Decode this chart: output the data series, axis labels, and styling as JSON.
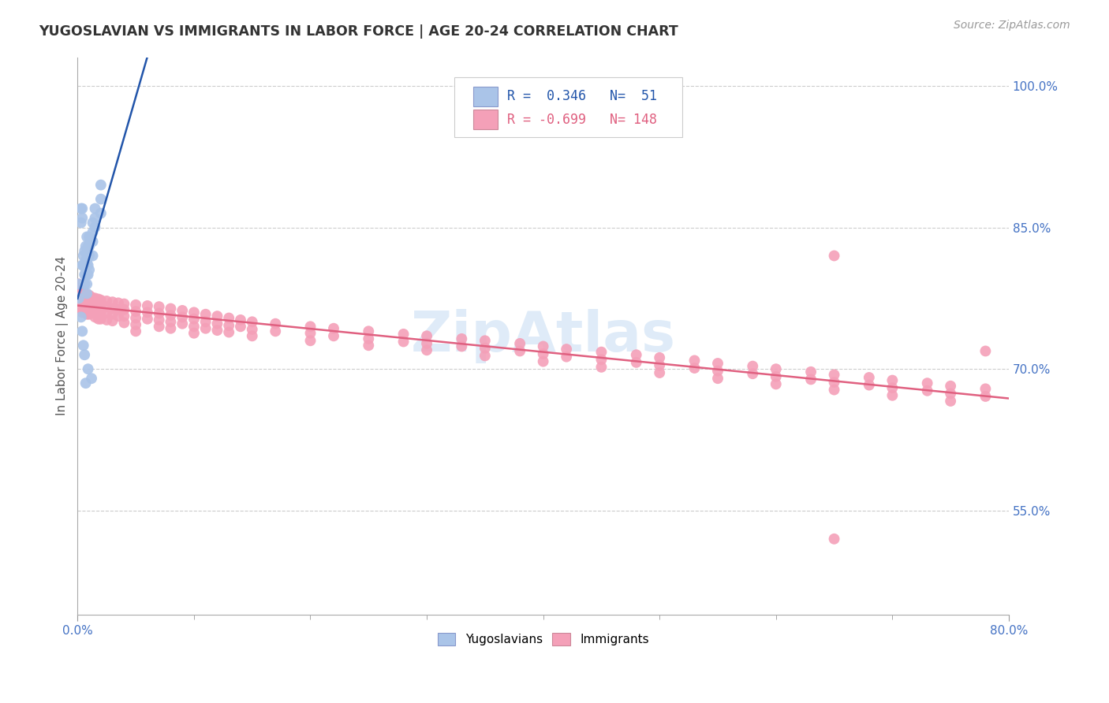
{
  "title": "YUGOSLAVIAN VS IMMIGRANTS IN LABOR FORCE | AGE 20-24 CORRELATION CHART",
  "source": "Source: ZipAtlas.com",
  "ylabel": "In Labor Force | Age 20-24",
  "ytick_labels": [
    "100.0%",
    "85.0%",
    "70.0%",
    "55.0%"
  ],
  "ytick_values": [
    1.0,
    0.85,
    0.7,
    0.55
  ],
  "xlim": [
    0.0,
    0.8
  ],
  "ylim": [
    0.44,
    1.03
  ],
  "blue_scatter_color": "#aac4e8",
  "pink_scatter_color": "#f4a0b8",
  "blue_line_color": "#2255aa",
  "pink_line_color": "#e06080",
  "watermark": "ZipAtlas",
  "background_color": "#ffffff",
  "grid_color": "#cccccc",
  "title_color": "#333333",
  "blue_scatter": [
    [
      0.001,
      0.775
    ],
    [
      0.001,
      0.79
    ],
    [
      0.003,
      0.87
    ],
    [
      0.003,
      0.855
    ],
    [
      0.004,
      0.87
    ],
    [
      0.004,
      0.86
    ],
    [
      0.004,
      0.81
    ],
    [
      0.005,
      0.82
    ],
    [
      0.005,
      0.81
    ],
    [
      0.006,
      0.825
    ],
    [
      0.006,
      0.81
    ],
    [
      0.006,
      0.8
    ],
    [
      0.006,
      0.79
    ],
    [
      0.007,
      0.83
    ],
    [
      0.007,
      0.815
    ],
    [
      0.007,
      0.805
    ],
    [
      0.007,
      0.8
    ],
    [
      0.007,
      0.8
    ],
    [
      0.008,
      0.84
    ],
    [
      0.008,
      0.82
    ],
    [
      0.008,
      0.815
    ],
    [
      0.008,
      0.81
    ],
    [
      0.008,
      0.8
    ],
    [
      0.008,
      0.79
    ],
    [
      0.008,
      0.78
    ],
    [
      0.009,
      0.83
    ],
    [
      0.009,
      0.82
    ],
    [
      0.009,
      0.81
    ],
    [
      0.009,
      0.8
    ],
    [
      0.01,
      0.84
    ],
    [
      0.01,
      0.83
    ],
    [
      0.01,
      0.82
    ],
    [
      0.01,
      0.805
    ],
    [
      0.011,
      0.835
    ],
    [
      0.013,
      0.855
    ],
    [
      0.013,
      0.845
    ],
    [
      0.013,
      0.835
    ],
    [
      0.013,
      0.82
    ],
    [
      0.015,
      0.87
    ],
    [
      0.015,
      0.86
    ],
    [
      0.015,
      0.85
    ],
    [
      0.02,
      0.895
    ],
    [
      0.02,
      0.88
    ],
    [
      0.02,
      0.865
    ],
    [
      0.003,
      0.755
    ],
    [
      0.004,
      0.74
    ],
    [
      0.005,
      0.725
    ],
    [
      0.006,
      0.715
    ],
    [
      0.007,
      0.685
    ],
    [
      0.009,
      0.7
    ],
    [
      0.012,
      0.69
    ]
  ],
  "pink_scatter": [
    [
      0.001,
      0.78
    ],
    [
      0.001,
      0.79
    ],
    [
      0.001,
      0.77
    ],
    [
      0.002,
      0.785
    ],
    [
      0.002,
      0.775
    ],
    [
      0.002,
      0.77
    ],
    [
      0.003,
      0.785
    ],
    [
      0.003,
      0.778
    ],
    [
      0.003,
      0.77
    ],
    [
      0.003,
      0.765
    ],
    [
      0.004,
      0.78
    ],
    [
      0.004,
      0.775
    ],
    [
      0.004,
      0.77
    ],
    [
      0.004,
      0.76
    ],
    [
      0.005,
      0.782
    ],
    [
      0.005,
      0.775
    ],
    [
      0.005,
      0.768
    ],
    [
      0.005,
      0.762
    ],
    [
      0.006,
      0.78
    ],
    [
      0.006,
      0.774
    ],
    [
      0.006,
      0.768
    ],
    [
      0.007,
      0.778
    ],
    [
      0.007,
      0.772
    ],
    [
      0.007,
      0.766
    ],
    [
      0.007,
      0.76
    ],
    [
      0.008,
      0.778
    ],
    [
      0.008,
      0.772
    ],
    [
      0.008,
      0.765
    ],
    [
      0.008,
      0.758
    ],
    [
      0.009,
      0.778
    ],
    [
      0.009,
      0.772
    ],
    [
      0.009,
      0.765
    ],
    [
      0.01,
      0.778
    ],
    [
      0.01,
      0.772
    ],
    [
      0.01,
      0.765
    ],
    [
      0.01,
      0.758
    ],
    [
      0.012,
      0.776
    ],
    [
      0.012,
      0.77
    ],
    [
      0.012,
      0.763
    ],
    [
      0.015,
      0.775
    ],
    [
      0.015,
      0.769
    ],
    [
      0.015,
      0.762
    ],
    [
      0.015,
      0.755
    ],
    [
      0.018,
      0.774
    ],
    [
      0.018,
      0.768
    ],
    [
      0.018,
      0.76
    ],
    [
      0.018,
      0.753
    ],
    [
      0.02,
      0.773
    ],
    [
      0.02,
      0.767
    ],
    [
      0.02,
      0.76
    ],
    [
      0.02,
      0.753
    ],
    [
      0.025,
      0.772
    ],
    [
      0.025,
      0.766
    ],
    [
      0.025,
      0.759
    ],
    [
      0.025,
      0.752
    ],
    [
      0.03,
      0.771
    ],
    [
      0.03,
      0.764
    ],
    [
      0.03,
      0.758
    ],
    [
      0.03,
      0.751
    ],
    [
      0.035,
      0.77
    ],
    [
      0.035,
      0.763
    ],
    [
      0.035,
      0.756
    ],
    [
      0.04,
      0.769
    ],
    [
      0.04,
      0.763
    ],
    [
      0.04,
      0.756
    ],
    [
      0.04,
      0.749
    ],
    [
      0.05,
      0.768
    ],
    [
      0.05,
      0.761
    ],
    [
      0.05,
      0.754
    ],
    [
      0.05,
      0.747
    ],
    [
      0.05,
      0.74
    ],
    [
      0.06,
      0.767
    ],
    [
      0.06,
      0.76
    ],
    [
      0.06,
      0.753
    ],
    [
      0.07,
      0.766
    ],
    [
      0.07,
      0.759
    ],
    [
      0.07,
      0.752
    ],
    [
      0.07,
      0.745
    ],
    [
      0.08,
      0.764
    ],
    [
      0.08,
      0.757
    ],
    [
      0.08,
      0.75
    ],
    [
      0.08,
      0.743
    ],
    [
      0.09,
      0.762
    ],
    [
      0.09,
      0.755
    ],
    [
      0.09,
      0.748
    ],
    [
      0.1,
      0.76
    ],
    [
      0.1,
      0.753
    ],
    [
      0.1,
      0.745
    ],
    [
      0.1,
      0.738
    ],
    [
      0.11,
      0.758
    ],
    [
      0.11,
      0.75
    ],
    [
      0.11,
      0.743
    ],
    [
      0.12,
      0.756
    ],
    [
      0.12,
      0.748
    ],
    [
      0.12,
      0.741
    ],
    [
      0.13,
      0.754
    ],
    [
      0.13,
      0.746
    ],
    [
      0.13,
      0.739
    ],
    [
      0.14,
      0.752
    ],
    [
      0.14,
      0.745
    ],
    [
      0.15,
      0.75
    ],
    [
      0.15,
      0.742
    ],
    [
      0.15,
      0.735
    ],
    [
      0.17,
      0.748
    ],
    [
      0.17,
      0.74
    ],
    [
      0.2,
      0.745
    ],
    [
      0.2,
      0.738
    ],
    [
      0.2,
      0.73
    ],
    [
      0.22,
      0.743
    ],
    [
      0.22,
      0.735
    ],
    [
      0.25,
      0.74
    ],
    [
      0.25,
      0.732
    ],
    [
      0.25,
      0.725
    ],
    [
      0.28,
      0.737
    ],
    [
      0.28,
      0.729
    ],
    [
      0.3,
      0.735
    ],
    [
      0.3,
      0.727
    ],
    [
      0.3,
      0.72
    ],
    [
      0.33,
      0.732
    ],
    [
      0.33,
      0.724
    ],
    [
      0.35,
      0.73
    ],
    [
      0.35,
      0.722
    ],
    [
      0.35,
      0.714
    ],
    [
      0.38,
      0.727
    ],
    [
      0.38,
      0.719
    ],
    [
      0.4,
      0.724
    ],
    [
      0.4,
      0.716
    ],
    [
      0.4,
      0.708
    ],
    [
      0.42,
      0.721
    ],
    [
      0.42,
      0.713
    ],
    [
      0.45,
      0.718
    ],
    [
      0.45,
      0.71
    ],
    [
      0.45,
      0.702
    ],
    [
      0.48,
      0.715
    ],
    [
      0.48,
      0.707
    ],
    [
      0.5,
      0.712
    ],
    [
      0.5,
      0.704
    ],
    [
      0.5,
      0.696
    ],
    [
      0.53,
      0.709
    ],
    [
      0.53,
      0.701
    ],
    [
      0.55,
      0.706
    ],
    [
      0.55,
      0.698
    ],
    [
      0.55,
      0.69
    ],
    [
      0.58,
      0.703
    ],
    [
      0.58,
      0.695
    ],
    [
      0.6,
      0.7
    ],
    [
      0.6,
      0.692
    ],
    [
      0.6,
      0.684
    ],
    [
      0.63,
      0.697
    ],
    [
      0.63,
      0.689
    ],
    [
      0.65,
      0.82
    ],
    [
      0.65,
      0.694
    ],
    [
      0.65,
      0.686
    ],
    [
      0.65,
      0.678
    ],
    [
      0.68,
      0.691
    ],
    [
      0.68,
      0.683
    ],
    [
      0.7,
      0.688
    ],
    [
      0.7,
      0.68
    ],
    [
      0.7,
      0.672
    ],
    [
      0.73,
      0.685
    ],
    [
      0.73,
      0.677
    ],
    [
      0.75,
      0.682
    ],
    [
      0.75,
      0.674
    ],
    [
      0.75,
      0.666
    ],
    [
      0.78,
      0.719
    ],
    [
      0.78,
      0.679
    ],
    [
      0.78,
      0.671
    ],
    [
      0.65,
      0.52
    ]
  ]
}
